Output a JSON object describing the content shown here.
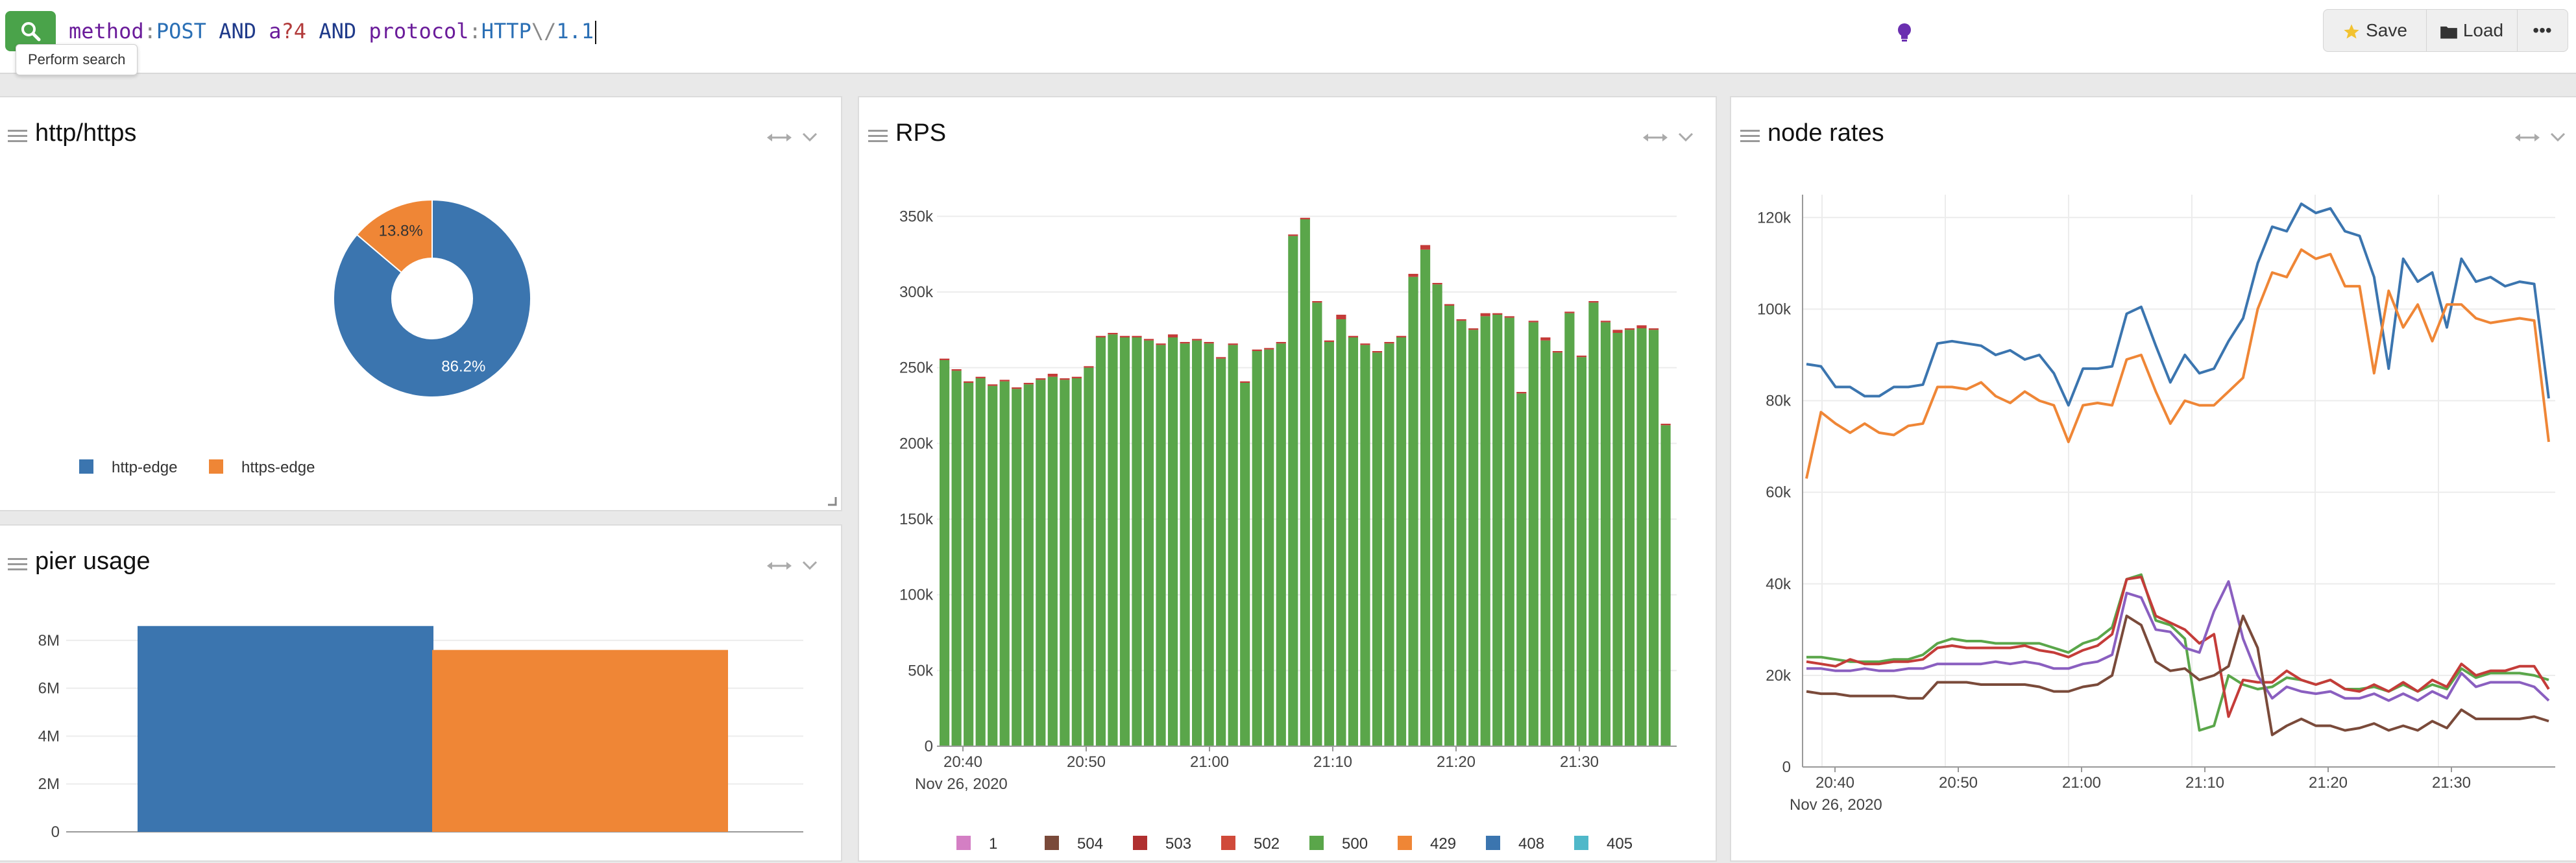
{
  "search": {
    "tooltip": "Perform search",
    "query_tokens": [
      {
        "t": "method",
        "c": "f"
      },
      {
        "t": ":",
        "c": "e"
      },
      {
        "t": "POST",
        "c": "v"
      },
      {
        "t": " AND ",
        "c": "k"
      },
      {
        "t": "a",
        "c": "f"
      },
      {
        "t": "?4",
        "c": "w"
      },
      {
        "t": " AND ",
        "c": "k"
      },
      {
        "t": "protocol",
        "c": "f"
      },
      {
        "t": ":",
        "c": "e"
      },
      {
        "t": "HTTP",
        "c": "v"
      },
      {
        "t": "\\/",
        "c": "e"
      },
      {
        "t": "1.1",
        "c": "v"
      }
    ]
  },
  "toolbar": {
    "save_label": "Save",
    "load_label": "Load",
    "more_label": "•••"
  },
  "colors": {
    "blue": "#3b75af",
    "orange": "#ef8636",
    "green": "#5aa64a",
    "red": "#c43c39",
    "brown": "#7a4a3a",
    "purple": "#8a5fc0",
    "pink": "#d47fc4",
    "cyan": "#4fb8c9"
  },
  "panels": {
    "http": {
      "title": "http/https"
    },
    "pier": {
      "title": "pier usage"
    },
    "rps": {
      "title": "RPS"
    },
    "node": {
      "title": "node rates"
    }
  },
  "chart_data": [
    {
      "type": "pie",
      "title": "http/https",
      "labels": [
        "http-edge",
        "https-edge"
      ],
      "values": [
        86.2,
        13.8
      ],
      "slice_labels": [
        "86.2%",
        "13.8%"
      ],
      "donut": true,
      "legend": "bottom"
    },
    {
      "type": "bar",
      "title": "pier usage",
      "categories": [
        "",
        ""
      ],
      "values": [
        8600000,
        7600000
      ],
      "bar_colors": [
        "#3b75af",
        "#ef8636"
      ],
      "yticks": [
        "0",
        "2M",
        "4M",
        "6M",
        "8M"
      ],
      "ylim": [
        0,
        9000000
      ]
    },
    {
      "type": "bar",
      "title": "RPS",
      "stacked": true,
      "yticks": [
        "0",
        "50k",
        "100k",
        "150k",
        "200k",
        "250k",
        "300k",
        "350k"
      ],
      "ylim": [
        0,
        360000
      ],
      "xticks": [
        "20:40",
        "20:50",
        "21:00",
        "21:10",
        "21:20",
        "21:30"
      ],
      "xsublabel": "Nov 26, 2020",
      "legend_entries": [
        "1",
        "504",
        "503",
        "502",
        "500",
        "429",
        "408",
        "405"
      ],
      "legend_colors": [
        "#d47fc4",
        "#7a4a3a",
        "#b03030",
        "#d04a3a",
        "#5aa64a",
        "#ef8636",
        "#3b75af",
        "#4fb8c9"
      ],
      "values": [
        255000,
        248000,
        240000,
        243000,
        238000,
        241000,
        236000,
        239000,
        242000,
        244000,
        242000,
        243000,
        250000,
        270000,
        272000,
        270000,
        270000,
        268000,
        265000,
        270000,
        266000,
        268000,
        266000,
        256000,
        265000,
        240000,
        261000,
        262000,
        266000,
        337000,
        348000,
        293000,
        267000,
        282000,
        270000,
        265000,
        260000,
        266000,
        270000,
        310000,
        328000,
        305000,
        291000,
        281000,
        275000,
        284000,
        285000,
        283000,
        233000,
        280000,
        268000,
        260000,
        286000,
        257000,
        293000,
        280000,
        273000,
        275000,
        276000,
        275000,
        212000
      ],
      "tops": [
        1000,
        1000,
        1000,
        1000,
        1000,
        1000,
        1000,
        1000,
        1000,
        2000,
        1000,
        1000,
        1000,
        1000,
        1000,
        1000,
        1000,
        1000,
        1000,
        2000,
        1000,
        1000,
        1000,
        1000,
        1000,
        1000,
        1000,
        1000,
        1000,
        1000,
        1000,
        1000,
        1000,
        3000,
        1000,
        1000,
        1000,
        1000,
        1000,
        2000,
        3000,
        1000,
        1000,
        1000,
        1000,
        2000,
        1000,
        1000,
        1000,
        1000,
        2000,
        1000,
        1000,
        1000,
        1000,
        1000,
        2000,
        1000,
        2000,
        1000,
        1000
      ]
    },
    {
      "type": "line",
      "title": "node rates",
      "yticks": [
        "0",
        "20k",
        "40k",
        "60k",
        "80k",
        "100k",
        "120k"
      ],
      "ylim": [
        0,
        125000
      ],
      "xticks": [
        "20:40",
        "20:50",
        "21:00",
        "21:10",
        "21:20",
        "21:30"
      ],
      "xsublabel": "Nov 26, 2020",
      "series": [
        {
          "color": "#3b75af",
          "values": [
            88000,
            87500,
            83000,
            83000,
            81000,
            81000,
            83000,
            83000,
            83500,
            92500,
            93000,
            92500,
            92000,
            90000,
            91000,
            89000,
            90000,
            86000,
            79000,
            87000,
            87000,
            87500,
            99000,
            100500,
            92000,
            84000,
            90000,
            86000,
            87000,
            93000,
            98000,
            110000,
            118000,
            117000,
            123000,
            121000,
            122000,
            117000,
            116000,
            107000,
            87000,
            111000,
            106000,
            108000,
            96000,
            111000,
            106000,
            107000,
            105000,
            106000,
            105500,
            80500
          ]
        },
        {
          "color": "#ef8636",
          "values": [
            63000,
            77500,
            75000,
            73000,
            75000,
            73000,
            72500,
            74500,
            75000,
            83000,
            83000,
            82500,
            84000,
            81000,
            79500,
            82000,
            80000,
            79000,
            71000,
            79000,
            79500,
            79000,
            89000,
            90000,
            82000,
            75000,
            80000,
            79000,
            79000,
            82000,
            85000,
            100000,
            108000,
            107000,
            113000,
            111000,
            112000,
            105000,
            105000,
            86000,
            104000,
            96000,
            101000,
            93000,
            101000,
            101000,
            98000,
            97000,
            97500,
            98000,
            97500,
            71000
          ]
        },
        {
          "color": "#5aa64a",
          "values": [
            24000,
            24000,
            23500,
            23000,
            23000,
            23000,
            23500,
            23500,
            24500,
            27000,
            28000,
            27500,
            27500,
            27000,
            27000,
            27000,
            27000,
            26000,
            25000,
            27000,
            28000,
            30500,
            41000,
            42000,
            32000,
            31000,
            28000,
            8000,
            9000,
            20000,
            18000,
            17000,
            17500,
            19500,
            19000,
            18000,
            19000,
            17000,
            17000,
            17500,
            16500,
            18000,
            16500,
            18000,
            17000,
            21500,
            19500,
            20500,
            20500,
            20500,
            20000,
            19000
          ]
        },
        {
          "color": "#c43c39",
          "values": [
            23000,
            22500,
            22000,
            23500,
            22500,
            22500,
            23000,
            23000,
            23500,
            26000,
            26500,
            26000,
            26000,
            26000,
            26000,
            26500,
            25500,
            25000,
            24000,
            25500,
            26500,
            29000,
            41000,
            41500,
            33000,
            31500,
            30000,
            27000,
            29000,
            11000,
            19000,
            18500,
            18500,
            21000,
            19000,
            18000,
            19000,
            17000,
            16500,
            18000,
            16500,
            18500,
            16500,
            19000,
            17500,
            22500,
            20000,
            21000,
            21000,
            22000,
            22000,
            17000
          ]
        },
        {
          "color": "#8a5fc0",
          "values": [
            21500,
            21500,
            21000,
            21000,
            21500,
            21000,
            21000,
            21500,
            21500,
            22500,
            22500,
            22500,
            22500,
            23000,
            22500,
            23000,
            22500,
            21500,
            21500,
            22500,
            23000,
            24500,
            38000,
            37000,
            30000,
            29500,
            26000,
            25000,
            34000,
            40500,
            28000,
            20000,
            15000,
            17500,
            16500,
            16000,
            16500,
            15000,
            15000,
            16000,
            14500,
            16000,
            14500,
            16500,
            15000,
            20500,
            17500,
            18500,
            18500,
            18500,
            17500,
            14500
          ]
        },
        {
          "color": "#7a4a3a",
          "values": [
            16500,
            16000,
            16000,
            15500,
            15500,
            15500,
            15500,
            15000,
            15000,
            18500,
            18500,
            18500,
            18000,
            18000,
            18000,
            18000,
            17500,
            16500,
            16500,
            17500,
            18000,
            20000,
            33000,
            31000,
            23000,
            21000,
            21500,
            19000,
            20000,
            22000,
            33000,
            26000,
            7000,
            9000,
            10500,
            9000,
            9000,
            8000,
            8500,
            9500,
            8000,
            9000,
            8000,
            10000,
            8500,
            12500,
            10500,
            10500,
            10500,
            10500,
            11000,
            10000
          ]
        }
      ]
    }
  ]
}
